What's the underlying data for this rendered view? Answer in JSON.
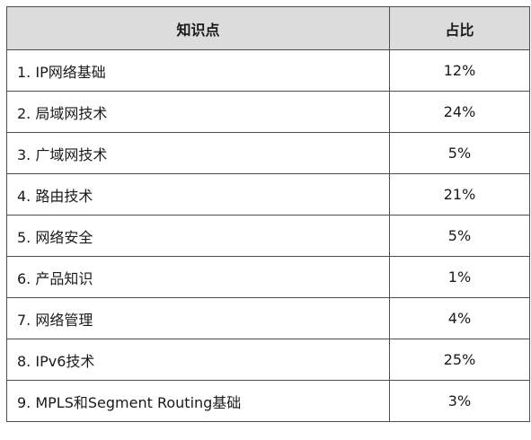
{
  "table": {
    "headers": [
      "知识点",
      "占比"
    ],
    "rows": [
      {
        "topic": "1. IP网络基础",
        "share": "12%"
      },
      {
        "topic": "2. 局域网技术",
        "share": "24%"
      },
      {
        "topic": "3. 广域网技术",
        "share": "5%"
      },
      {
        "topic": "4. 路由技术",
        "share": "21%"
      },
      {
        "topic": "5. 网络安全",
        "share": "5%"
      },
      {
        "topic": "6. 产品知识",
        "share": "1%"
      },
      {
        "topic": "7. 网络管理",
        "share": "4%"
      },
      {
        "topic": "8. IPv6技术",
        "share": "25%"
      },
      {
        "topic": "9. MPLS和Segment Routing基础",
        "share": "3%"
      }
    ]
  }
}
